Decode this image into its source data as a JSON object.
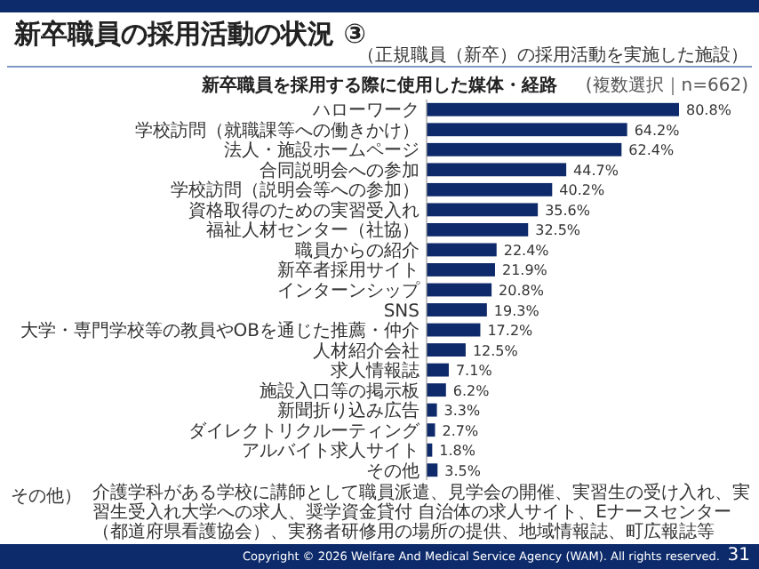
{
  "chart_data": {
    "type": "bar",
    "orientation": "horizontal",
    "title": "新卒職員の採用活動の状況 ③",
    "subtitle": "（正規職員（新卒）の採用活動を実施した施設）",
    "categories": [
      "ハローワーク",
      "学校訪問（就職課等への働きかけ）",
      "法人・施設ホームページ",
      "合同説明会への参加",
      "学校訪問（説明会等への参加）",
      "資格取得のための実習受入れ",
      "福祉人材センター（社協）",
      "職員からの紹介",
      "新卒者採用サイト",
      "インターンシップ",
      "SNS",
      "大学・専門学校等の教員やOBを通じた推薦・仲介",
      "人材紹介会社",
      "求人情報誌",
      "施設入口等の掲示板",
      "新聞折り込み広告",
      "ダイレクトリクルーティング",
      "アルバイト求人サイト",
      "その他"
    ],
    "values": [
      80.8,
      64.2,
      62.4,
      44.7,
      40.2,
      35.6,
      32.5,
      22.4,
      21.9,
      20.8,
      19.3,
      17.2,
      12.5,
      7.1,
      6.2,
      3.3,
      2.7,
      1.8,
      3.5
    ],
    "value_labels": [
      "80.8%",
      "64.2%",
      "62.4%",
      "44.7%",
      "40.2%",
      "35.6%",
      "32.5%",
      "22.4%",
      "21.9%",
      "20.8%",
      "19.3%",
      "17.2%",
      "12.5%",
      "7.1%",
      "6.2%",
      "3.3%",
      "2.7%",
      "1.8%",
      "3.5%"
    ],
    "color": "#0e2a6a",
    "annotations": [
      "新卒職員を採用する際に使用した媒体・経路",
      "(複数選択｜n=662)",
      "その他）",
      "介護学科がある学校に講師として職員派遣、見学会の開催、実習生の受け入れ、実習生受入れ大学への求人、奨学資金貸付 自治体の求人サイト、Eナースセンター（都道府県看護協会）、実務者研修用の場所の提供、地域情報誌、町広報誌等",
      "Copyright © 2026 Welfare And Medical Service Agency (WAM). All rights reserved.",
      "31"
    ]
  }
}
